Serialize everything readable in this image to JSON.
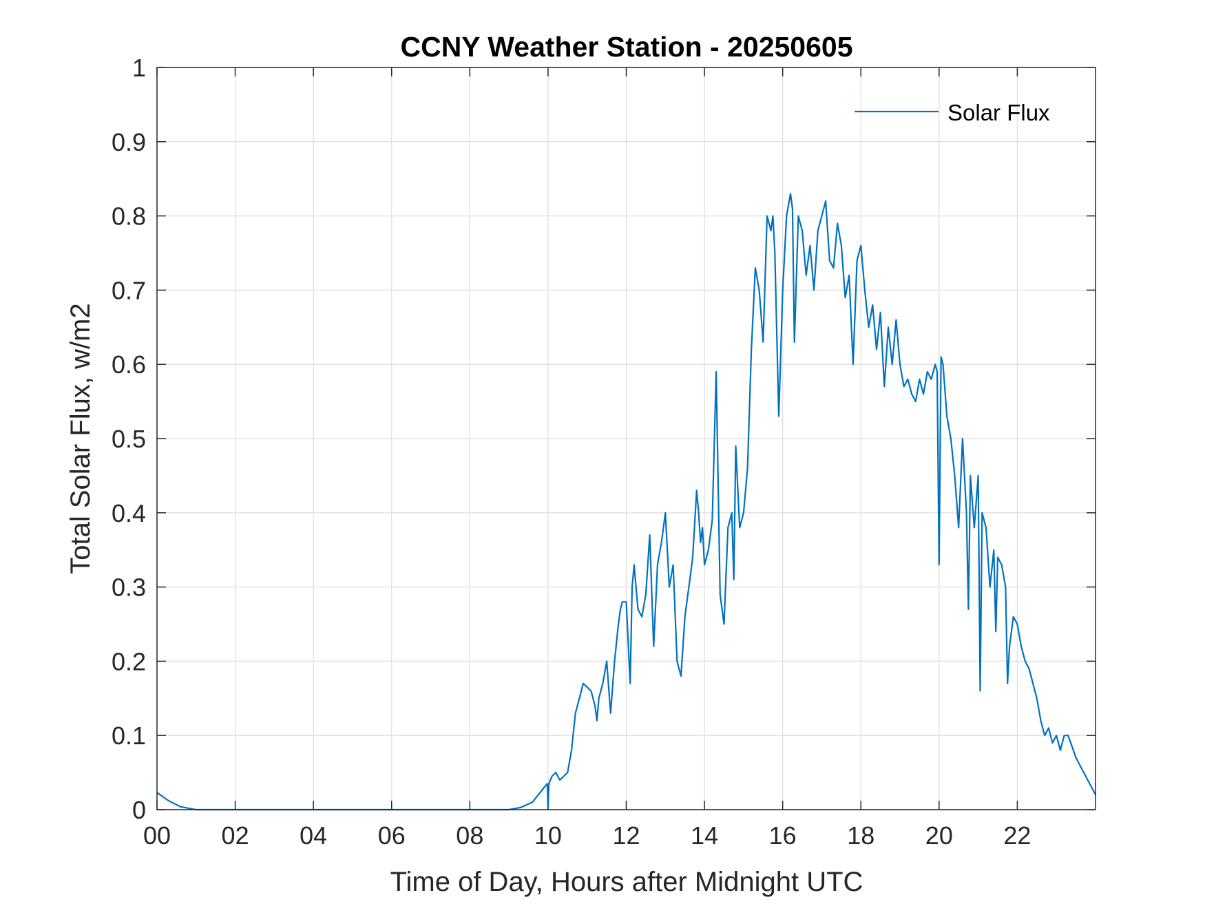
{
  "chart_data": {
    "type": "line",
    "title": "CCNY Weather Station - 20250605",
    "xlabel": "Time of Day, Hours after Midnight UTC",
    "ylabel": "Total Solar Flux, w/m2",
    "xlim": [
      0,
      24
    ],
    "ylim": [
      0,
      1
    ],
    "grid": true,
    "legend_position": "top-right",
    "x_ticks": [
      0,
      2,
      4,
      6,
      8,
      10,
      12,
      14,
      16,
      18,
      20,
      22
    ],
    "x_tick_labels": [
      "00",
      "02",
      "04",
      "06",
      "08",
      "10",
      "12",
      "14",
      "16",
      "18",
      "20",
      "22"
    ],
    "y_ticks": [
      0,
      0.1,
      0.2,
      0.3,
      0.4,
      0.5,
      0.6,
      0.7,
      0.8,
      0.9,
      1
    ],
    "y_tick_labels": [
      "0",
      "0.1",
      "0.2",
      "0.3",
      "0.4",
      "0.5",
      "0.6",
      "0.7",
      "0.8",
      "0.9",
      "1"
    ],
    "series": [
      {
        "name": "Solar Flux",
        "color": "#0072BD",
        "x": [
          0,
          0.3,
          0.6,
          0.9,
          1.0,
          9.0,
          9.3,
          9.6,
          9.9,
          9.98,
          10.0,
          10.02,
          10.1,
          10.2,
          10.3,
          10.4,
          10.5,
          10.6,
          10.7,
          10.8,
          10.9,
          11.0,
          11.1,
          11.2,
          11.25,
          11.3,
          11.4,
          11.5,
          11.6,
          11.7,
          11.8,
          11.85,
          11.9,
          12.0,
          12.1,
          12.15,
          12.2,
          12.3,
          12.4,
          12.5,
          12.6,
          12.7,
          12.8,
          12.9,
          13.0,
          13.1,
          13.2,
          13.3,
          13.4,
          13.5,
          13.6,
          13.7,
          13.8,
          13.85,
          13.9,
          13.95,
          14.0,
          14.1,
          14.2,
          14.3,
          14.4,
          14.5,
          14.6,
          14.7,
          14.75,
          14.8,
          14.9,
          15.0,
          15.1,
          15.2,
          15.3,
          15.4,
          15.5,
          15.6,
          15.7,
          15.75,
          15.8,
          15.9,
          16.0,
          16.1,
          16.2,
          16.25,
          16.3,
          16.4,
          16.5,
          16.6,
          16.7,
          16.8,
          16.9,
          17.0,
          17.1,
          17.2,
          17.3,
          17.4,
          17.5,
          17.6,
          17.7,
          17.8,
          17.9,
          18.0,
          18.1,
          18.2,
          18.3,
          18.4,
          18.5,
          18.6,
          18.7,
          18.8,
          18.9,
          19.0,
          19.1,
          19.2,
          19.3,
          19.4,
          19.5,
          19.6,
          19.7,
          19.8,
          19.9,
          19.95,
          20.0,
          20.05,
          20.1,
          20.2,
          20.3,
          20.4,
          20.5,
          20.6,
          20.7,
          20.75,
          20.8,
          20.9,
          21.0,
          21.05,
          21.1,
          21.2,
          21.3,
          21.4,
          21.45,
          21.5,
          21.6,
          21.7,
          21.75,
          21.8,
          21.9,
          22.0,
          22.1,
          22.2,
          22.3,
          22.4,
          22.5,
          22.6,
          22.7,
          22.8,
          22.9,
          23.0,
          23.1,
          23.2,
          23.3,
          23.5,
          23.7,
          24.0
        ],
        "values": [
          0.023,
          0.012,
          0.004,
          0.001,
          0,
          0,
          0.003,
          0.01,
          0.03,
          0.035,
          0,
          0.035,
          0.045,
          0.05,
          0.04,
          0.045,
          0.05,
          0.08,
          0.13,
          0.15,
          0.17,
          0.165,
          0.16,
          0.14,
          0.12,
          0.15,
          0.17,
          0.2,
          0.13,
          0.2,
          0.25,
          0.27,
          0.28,
          0.28,
          0.17,
          0.3,
          0.33,
          0.27,
          0.26,
          0.29,
          0.37,
          0.22,
          0.33,
          0.36,
          0.4,
          0.3,
          0.33,
          0.2,
          0.18,
          0.26,
          0.3,
          0.34,
          0.43,
          0.4,
          0.36,
          0.38,
          0.33,
          0.35,
          0.39,
          0.59,
          0.29,
          0.25,
          0.38,
          0.4,
          0.31,
          0.49,
          0.38,
          0.4,
          0.46,
          0.62,
          0.73,
          0.7,
          0.63,
          0.8,
          0.78,
          0.8,
          0.75,
          0.53,
          0.7,
          0.8,
          0.83,
          0.81,
          0.63,
          0.8,
          0.78,
          0.72,
          0.76,
          0.7,
          0.78,
          0.8,
          0.82,
          0.74,
          0.73,
          0.79,
          0.76,
          0.69,
          0.72,
          0.6,
          0.74,
          0.76,
          0.7,
          0.65,
          0.68,
          0.62,
          0.67,
          0.57,
          0.65,
          0.6,
          0.66,
          0.6,
          0.57,
          0.58,
          0.56,
          0.55,
          0.58,
          0.56,
          0.59,
          0.58,
          0.6,
          0.59,
          0.33,
          0.61,
          0.6,
          0.53,
          0.5,
          0.45,
          0.38,
          0.5,
          0.4,
          0.27,
          0.45,
          0.38,
          0.45,
          0.16,
          0.4,
          0.38,
          0.3,
          0.35,
          0.24,
          0.34,
          0.33,
          0.3,
          0.17,
          0.22,
          0.26,
          0.25,
          0.22,
          0.2,
          0.19,
          0.17,
          0.15,
          0.12,
          0.1,
          0.11,
          0.09,
          0.1,
          0.08,
          0.1,
          0.1,
          0.07,
          0.05,
          0.02
        ]
      }
    ]
  }
}
